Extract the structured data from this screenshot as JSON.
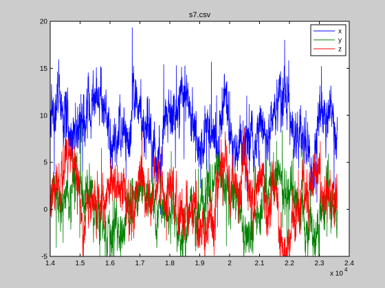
{
  "chart_data": {
    "type": "line",
    "title": "s7.csv",
    "xlabel": "",
    "ylabel": "",
    "x_range": [
      14000,
      24000
    ],
    "x_data_range": [
      14000,
      23600
    ],
    "x_ticks": [
      "1.4",
      "1.5",
      "1.6",
      "1.7",
      "1.8",
      "1.9",
      "2",
      "2.1",
      "2.2",
      "2.3",
      "2.4"
    ],
    "x_multiplier_label": "x 10",
    "x_multiplier_exp": "4",
    "ylim": [
      -5,
      20
    ],
    "y_ticks": [
      "-5",
      "0",
      "5",
      "10",
      "15",
      "20"
    ],
    "grid": false,
    "legend_position": "top-right",
    "series": [
      {
        "name": "x",
        "color": "#0000ff",
        "mean": 9.8,
        "noise": 1.4,
        "spike_prob": 0.02,
        "spike_amp": 4.5
      },
      {
        "name": "y",
        "color": "#008000",
        "mean": -0.2,
        "noise": 1.2,
        "spike_prob": 0.02,
        "spike_amp": 4.0
      },
      {
        "name": "z",
        "color": "#ff0000",
        "mean": 1.5,
        "noise": 1.3,
        "spike_prob": 0.015,
        "spike_amp": 2.8
      }
    ]
  }
}
